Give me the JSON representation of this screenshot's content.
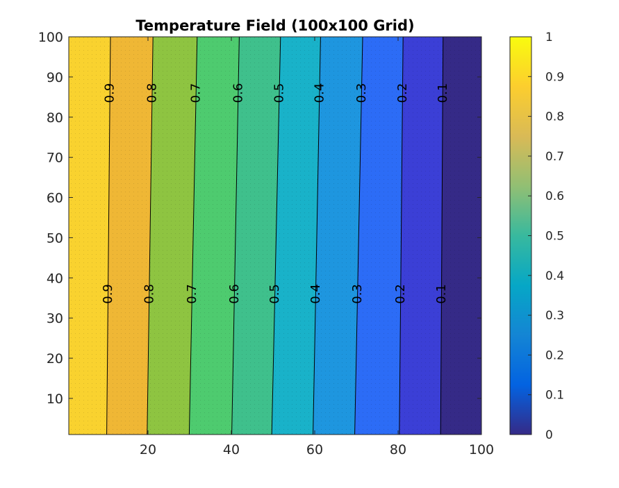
{
  "chart_data": {
    "type": "heatmap",
    "subtype": "filled-contour",
    "title": "Temperature Field (100x100 Grid)",
    "xlabel": "",
    "ylabel": "",
    "xlim": [
      1,
      100
    ],
    "ylim": [
      1,
      100
    ],
    "x_ticks": [
      20,
      40,
      60,
      80,
      100
    ],
    "y_ticks": [
      10,
      20,
      30,
      40,
      50,
      60,
      70,
      80,
      90,
      100
    ],
    "colormap": "parula",
    "colorbar": {
      "range": [
        0,
        1
      ],
      "ticks": [
        0,
        0.1,
        0.2,
        0.3,
        0.4,
        0.5,
        0.6,
        0.7,
        0.8,
        0.9,
        1
      ]
    },
    "contour_levels": [
      0.1,
      0.2,
      0.3,
      0.4,
      0.5,
      0.6,
      0.7,
      0.8,
      0.9
    ],
    "contour_x_at_bottom": [
      90.2,
      80.3,
      69.6,
      59.6,
      49.7,
      40.1,
      29.9,
      19.8,
      10.1
    ],
    "contour_x_at_top": [
      90.8,
      81.2,
      71.5,
      61.4,
      51.8,
      41.9,
      31.8,
      21.2,
      11.0
    ],
    "contour_label_y": [
      86,
      36
    ],
    "band_colors": [
      "#352a87",
      "#3b3fd6",
      "#2c6cf6",
      "#1e96df",
      "#19b2c9",
      "#3fc08c",
      "#4ecb6f",
      "#8ec441",
      "#efb735",
      "#f9d22f"
    ],
    "colorbar_colors": [
      "#352a87",
      "#0363e1",
      "#1485d4",
      "#06a7c6",
      "#38b99e",
      "#92bf73",
      "#d9ba56",
      "#fcce2e",
      "#f9fb0e"
    ],
    "grid": false,
    "legend": "none"
  }
}
